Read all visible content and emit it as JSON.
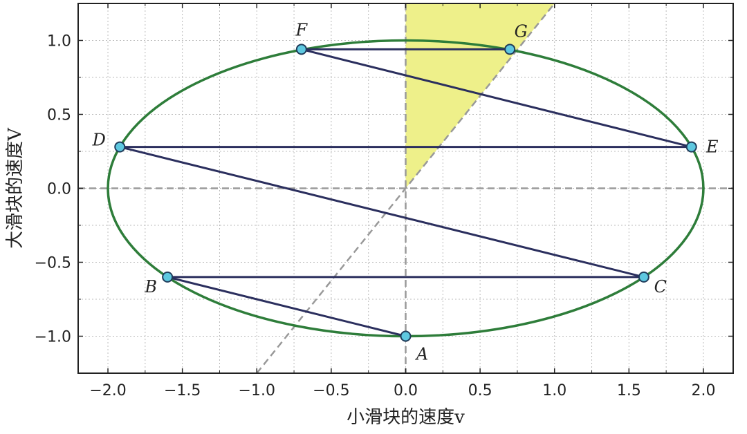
{
  "chart_data": {
    "type": "scatter",
    "xlabel": "小滑块的速度v",
    "ylabel": "大滑块的速度V",
    "xlim": [
      -2.2,
      2.2
    ],
    "ylim": [
      -1.25,
      1.25
    ],
    "xticks": [
      -2.0,
      -1.5,
      -1.0,
      -0.5,
      0.0,
      0.5,
      1.0,
      1.5,
      2.0
    ],
    "yticks": [
      -1.0,
      -0.5,
      0.0,
      0.5,
      1.0
    ],
    "xtick_labels": [
      "−2.0",
      "−1.5",
      "−1.0",
      "−0.5",
      "0.0",
      "0.5",
      "1.0",
      "1.5",
      "2.0"
    ],
    "ytick_labels": [
      "−1.0",
      "−0.5",
      "0.0",
      "0.5",
      "1.0"
    ],
    "grid": true,
    "ellipse": {
      "rx": 2.0,
      "ry": 1.0,
      "color": "#2e7d3a"
    },
    "points": [
      {
        "label": "A",
        "x": 0.0,
        "y": -1.0
      },
      {
        "label": "B",
        "x": -1.6,
        "y": -0.6
      },
      {
        "label": "C",
        "x": 1.6,
        "y": -0.6
      },
      {
        "label": "D",
        "x": -1.92,
        "y": 0.28
      },
      {
        "label": "E",
        "x": 1.92,
        "y": 0.28
      },
      {
        "label": "F",
        "x": -0.7,
        "y": 0.94
      },
      {
        "label": "G",
        "x": 0.7,
        "y": 0.94
      }
    ],
    "path_order": [
      "A",
      "B",
      "C",
      "D",
      "E",
      "F",
      "G"
    ],
    "reference_line": {
      "slope": 1.25,
      "style": "dashed",
      "color": "#999999"
    },
    "shaded_region": {
      "vertices": [
        [
          0,
          0
        ],
        [
          0,
          1.25
        ],
        [
          1.0,
          1.25
        ]
      ],
      "color": "#eef08a"
    },
    "colors": {
      "path": "#2b2f5e",
      "marker_fill": "#5ec8e0",
      "marker_edge": "#1f3b5a",
      "axis_dash": "#999999"
    }
  }
}
